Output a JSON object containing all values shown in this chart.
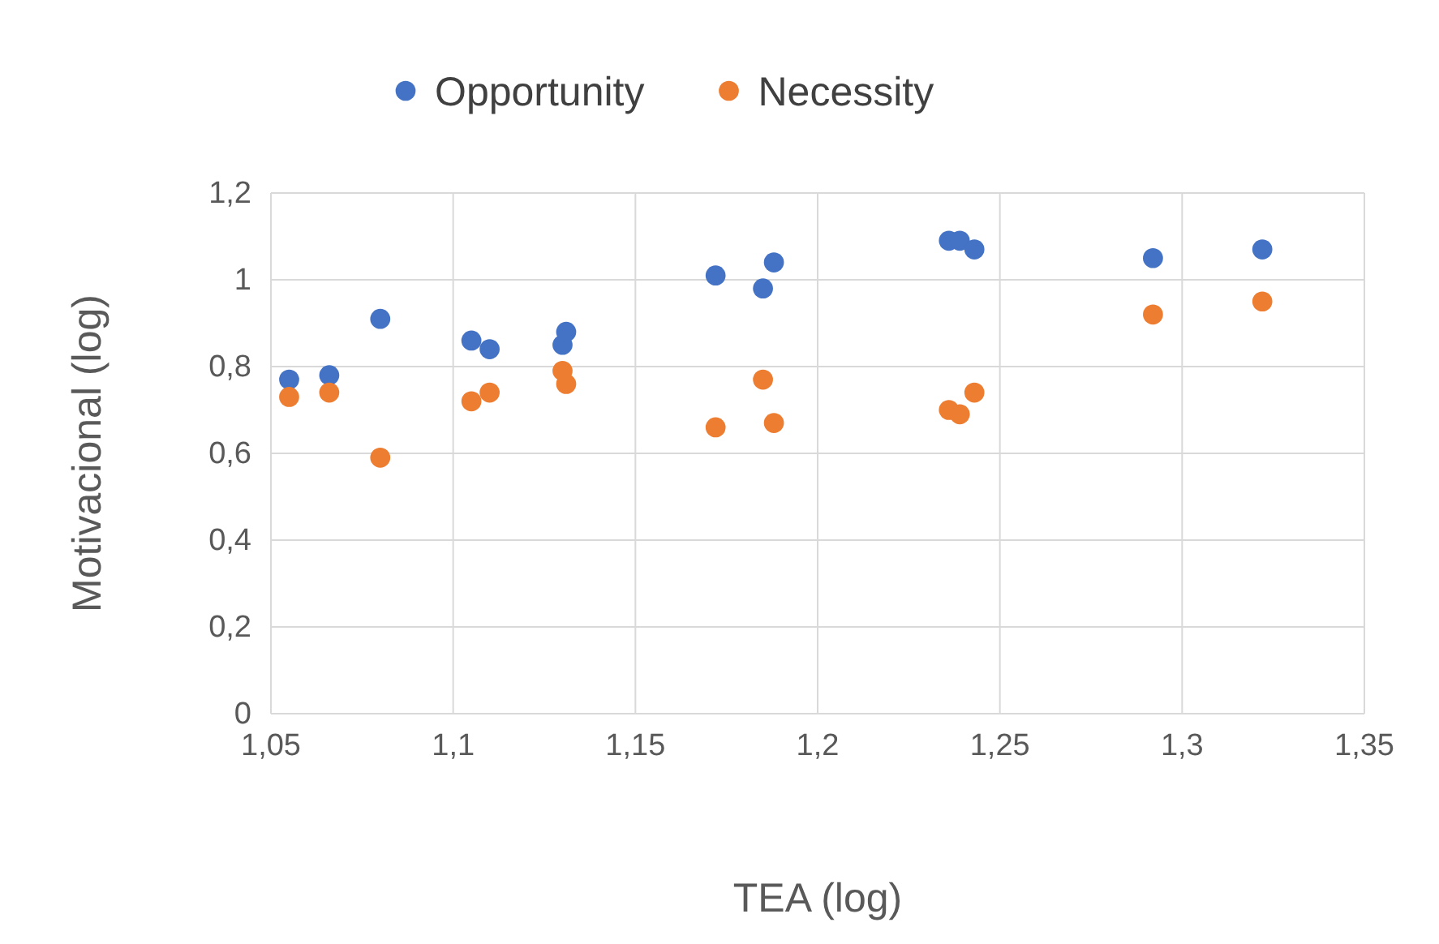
{
  "chart_data": {
    "type": "scatter",
    "xlabel": "TEA (log)",
    "ylabel": "Motivacional (log)",
    "xlim": [
      1.05,
      1.35
    ],
    "xticks": [
      {
        "value": 1.05,
        "label": "1,05"
      },
      {
        "value": 1.1,
        "label": "1,1"
      },
      {
        "value": 1.15,
        "label": "1,15"
      },
      {
        "value": 1.2,
        "label": "1,2"
      },
      {
        "value": 1.25,
        "label": "1,25"
      },
      {
        "value": 1.3,
        "label": "1,3"
      },
      {
        "value": 1.35,
        "label": "1,35"
      }
    ],
    "ylim": [
      0,
      1.2
    ],
    "yticks": [
      0,
      {
        "value": 0.2,
        "label": "0,2"
      },
      {
        "value": 0.4,
        "label": "0,4"
      },
      {
        "value": 0.6,
        "label": "0,6"
      },
      {
        "value": 0.8,
        "label": "0,8"
      },
      1,
      {
        "value": 1.2,
        "label": "1,2"
      }
    ],
    "grid": true,
    "legend": "top",
    "marker": "circle",
    "series": [
      {
        "name": "Opportunity",
        "color": "#4472c4",
        "x": [
          1.055,
          1.066,
          1.08,
          1.105,
          1.11,
          1.13,
          1.131,
          1.172,
          1.185,
          1.188,
          1.236,
          1.239,
          1.243,
          1.292,
          1.322
        ],
        "values": [
          0.77,
          0.78,
          0.91,
          0.86,
          0.84,
          0.85,
          0.88,
          1.01,
          0.98,
          1.04,
          1.09,
          1.09,
          1.07,
          1.05,
          1.07
        ]
      },
      {
        "name": "Necessity",
        "color": "#ed7d31",
        "x": [
          1.055,
          1.066,
          1.08,
          1.105,
          1.11,
          1.13,
          1.131,
          1.172,
          1.185,
          1.188,
          1.236,
          1.239,
          1.243,
          1.292,
          1.322
        ],
        "values": [
          0.73,
          0.74,
          0.59,
          0.72,
          0.74,
          0.79,
          0.76,
          0.66,
          0.77,
          0.67,
          0.7,
          0.69,
          0.74,
          0.92,
          0.95
        ]
      }
    ]
  }
}
